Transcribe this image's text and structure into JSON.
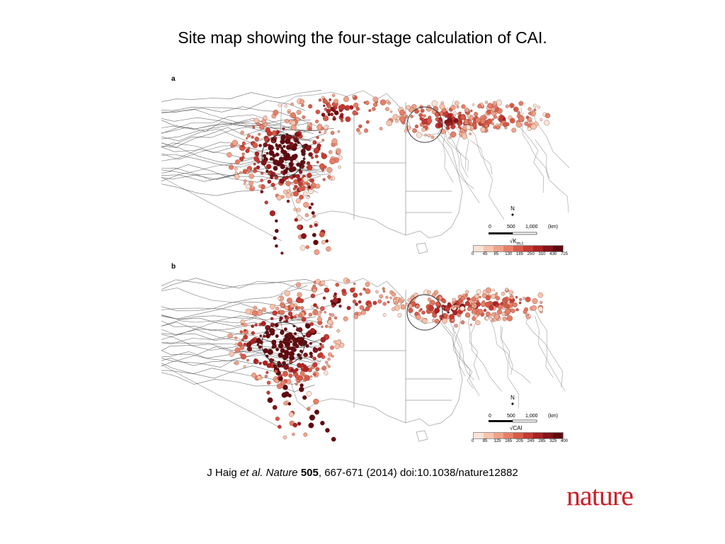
{
  "slide": {
    "title": "Site map showing the four-stage calculation of CAI.",
    "citation": {
      "authors": "J Haig ",
      "etal": "et al.",
      "journal": "Nature",
      "volume": "505",
      "pages_year_doi": ", 667-671 (2014) doi:10.1038/nature12882"
    },
    "logo": "nature"
  },
  "panels": [
    {
      "letter": "a",
      "north_label": "N",
      "scale_labels": [
        "0",
        "500",
        "1,000",
        "(km)"
      ],
      "legend_title": "√K",
      "legend_title_sub": "m,t",
      "legend_ticks": [
        "0",
        "45",
        "85",
        "130",
        "185",
        "250",
        "310",
        "430",
        "725"
      ]
    },
    {
      "letter": "b",
      "north_label": "N",
      "scale_labels": [
        "0",
        "500",
        "1,000",
        "(km)"
      ],
      "legend_title": "√CAI",
      "legend_title_sub": "",
      "legend_ticks": [
        "0",
        "85",
        "125",
        "165",
        "205",
        "245",
        "285",
        "325",
        "400"
      ]
    }
  ],
  "colors": {
    "ramp": [
      "#fbe3d6",
      "#f7c4ad",
      "#f0a28a",
      "#e67e67",
      "#d85a48",
      "#c53a33",
      "#a92224",
      "#85131a",
      "#5e0a10"
    ],
    "track_line": "#4a4a4a",
    "boundary": "#9a9a9a",
    "logo_red": "#cc2028"
  }
}
